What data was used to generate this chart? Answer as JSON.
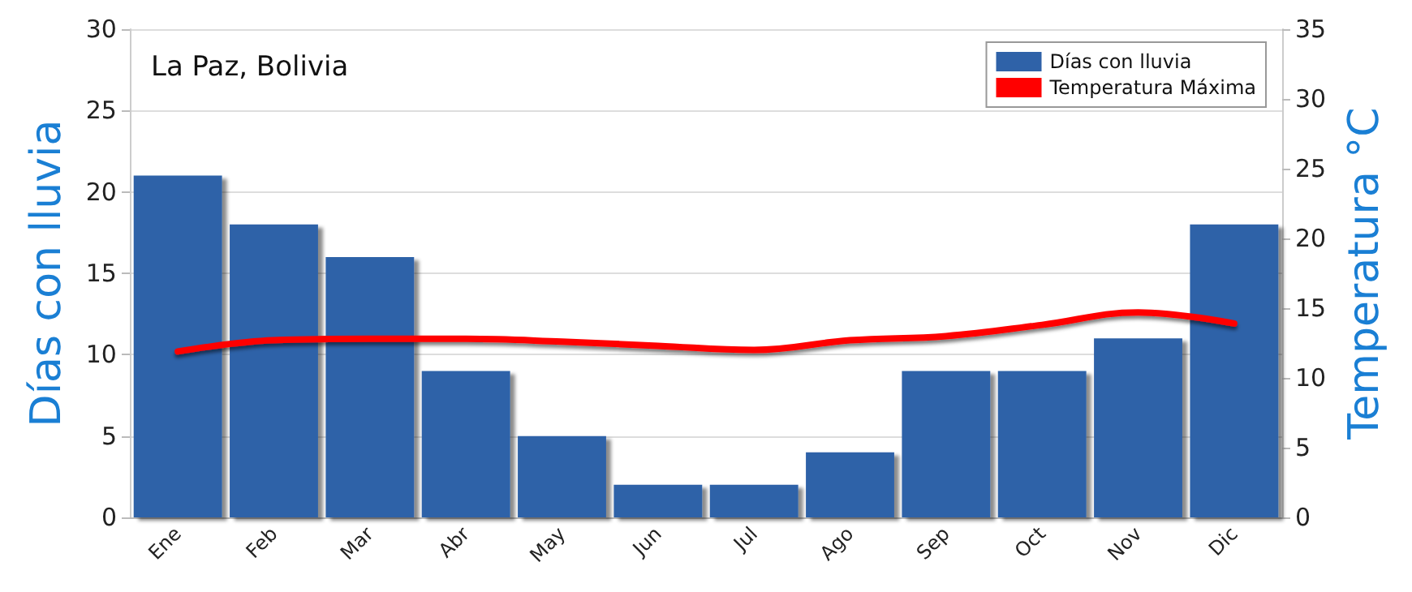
{
  "chart_data": {
    "type": "bar",
    "title": "La Paz, Bolivia",
    "ylabel": "Días con lluvia",
    "y2label": "Temperatura °C",
    "categories": [
      "Ene",
      "Feb",
      "Mar",
      "Abr",
      "May",
      "Jun",
      "Jul",
      "Ago",
      "Sep",
      "Oct",
      "Nov",
      "Dic"
    ],
    "series": [
      {
        "name": "Días con lluvia",
        "color": "#2f62a8",
        "values": [
          21,
          18,
          16,
          9,
          5,
          2,
          2,
          4,
          9,
          9,
          11,
          18
        ]
      },
      {
        "name": "Temperatura Máxima",
        "type": "line",
        "axis": "y2",
        "color": "#ff0000",
        "values": [
          11.9,
          12.7,
          12.8,
          12.8,
          12.6,
          12.3,
          12.0,
          12.7,
          13.0,
          13.8,
          14.7,
          13.9
        ]
      }
    ],
    "ylim": [
      0,
      30
    ],
    "yticks": [
      0,
      5,
      10,
      15,
      20,
      25,
      30
    ],
    "y2lim": [
      0,
      35
    ],
    "y2ticks": [
      0,
      5,
      10,
      15,
      20,
      25,
      30,
      35
    ],
    "grid": "y",
    "legend": "top right",
    "marker": "none",
    "line_style": "solid"
  }
}
